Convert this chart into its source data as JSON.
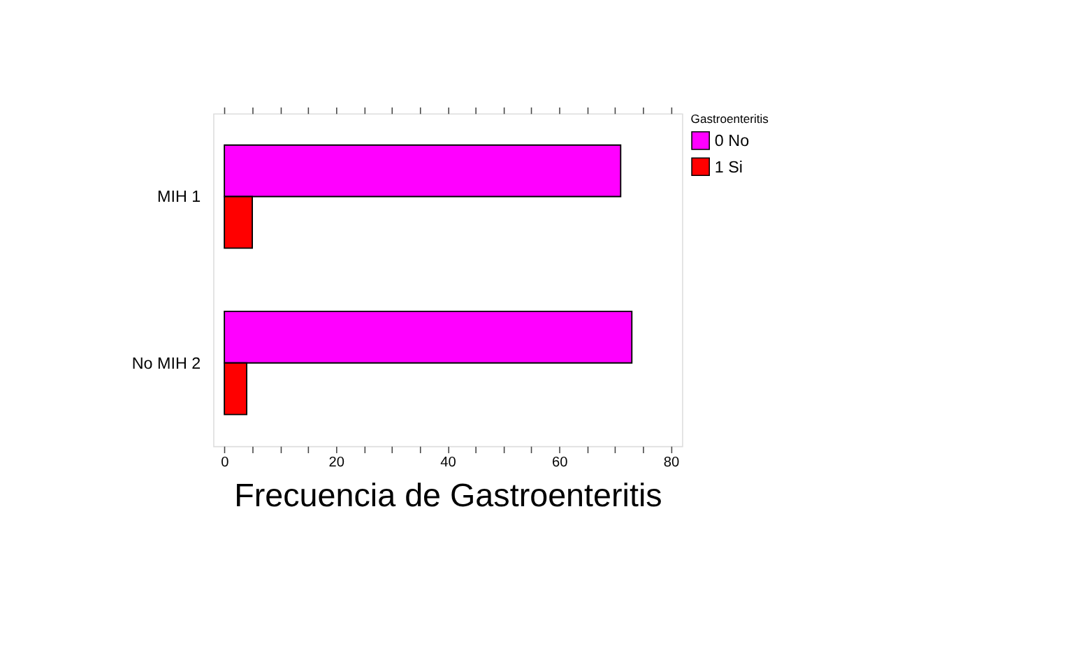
{
  "chart_data": {
    "type": "bar",
    "orientation": "horizontal",
    "xlabel": "Frecuencia de Gastroenteritis",
    "legend_title": "Gastroenteritis",
    "legend": "top right",
    "categories": [
      "MIH 1",
      "No MIH 2"
    ],
    "series": [
      {
        "name": "0 No",
        "color": "#ff00ff",
        "values": [
          71,
          73
        ]
      },
      {
        "name": "1 Si",
        "color": "#ff0000",
        "values": [
          5,
          4
        ]
      }
    ],
    "xlim": [
      -2,
      82
    ],
    "xticks": [
      0,
      {
        "value": 5,
        "label": null
      },
      {
        "value": 10,
        "label": null
      },
      {
        "value": 15,
        "label": null
      },
      20,
      {
        "value": 25,
        "label": null
      },
      {
        "value": 30,
        "label": null
      },
      {
        "value": 35,
        "label": null
      },
      40,
      {
        "value": 45,
        "label": null
      },
      {
        "value": 50,
        "label": null
      },
      {
        "value": 55,
        "label": null
      },
      60,
      {
        "value": 65,
        "label": null
      },
      {
        "value": 70,
        "label": null
      },
      {
        "value": 75,
        "label": null
      },
      80
    ],
    "grid": false
  }
}
